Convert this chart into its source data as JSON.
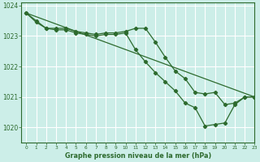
{
  "title": "Graphe pression niveau de la mer (hPa)",
  "bg_color": "#cceee8",
  "line_color": "#2d6a2d",
  "grid_color": "#ffffff",
  "xlim": [
    -0.5,
    23
  ],
  "ylim": [
    1019.5,
    1024.1
  ],
  "yticks": [
    1020,
    1021,
    1022,
    1023,
    1024
  ],
  "xticks": [
    0,
    1,
    2,
    3,
    4,
    5,
    6,
    7,
    8,
    9,
    10,
    11,
    12,
    13,
    14,
    15,
    16,
    17,
    18,
    19,
    20,
    21,
    22,
    23
  ],
  "series": [
    {
      "x": [
        0,
        1,
        2,
        3,
        4,
        5,
        6,
        7,
        8,
        9,
        10,
        11,
        12,
        13,
        14,
        15,
        16,
        17,
        18,
        19,
        20,
        21,
        22,
        23
      ],
      "y": [
        1023.75,
        1023.5,
        1023.25,
        1023.25,
        1023.25,
        1023.15,
        1023.1,
        1023.05,
        1023.1,
        1023.1,
        1023.15,
        1023.25,
        1023.25,
        1022.8,
        1022.3,
        1021.85,
        1021.6,
        1021.15,
        1021.1,
        1021.15,
        1020.75,
        1020.8,
        1021.0,
        1021.0
      ]
    },
    {
      "x": [
        0,
        1,
        2,
        3,
        4,
        5,
        6,
        7,
        8,
        9,
        10,
        11,
        12,
        13,
        14,
        15,
        16,
        17,
        18,
        19,
        20,
        21,
        22,
        23
      ],
      "y": [
        1023.75,
        1023.45,
        1023.25,
        1023.2,
        1023.2,
        1023.1,
        1023.05,
        1023.0,
        1023.05,
        1023.05,
        1023.1,
        1022.55,
        1022.15,
        1021.8,
        1021.5,
        1021.2,
        1020.8,
        1020.65,
        1020.05,
        1020.1,
        1020.15,
        1020.75,
        1021.0,
        1021.0
      ]
    },
    {
      "x": [
        0,
        23
      ],
      "y": [
        1023.75,
        1021.0
      ]
    }
  ]
}
